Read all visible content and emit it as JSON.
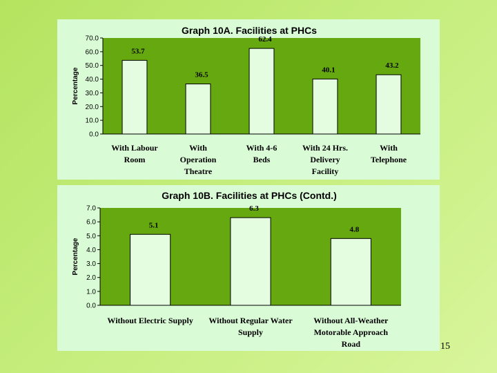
{
  "slide_number": "15",
  "chart_data": [
    {
      "type": "bar",
      "title": "Graph 10A. Facilities at PHCs",
      "ylabel": "Percentage",
      "xlabel": "",
      "ylim": [
        0,
        70
      ],
      "ytick_step": 10,
      "ytick_decimals": 1,
      "categories": [
        [
          "With Labour",
          "Room"
        ],
        [
          "With",
          "Operation",
          "Theatre"
        ],
        [
          "With 4-6",
          "Beds"
        ],
        [
          "With 24 Hrs.",
          "Delivery",
          "Facility"
        ],
        [
          "With",
          "Telephone"
        ]
      ],
      "values": [
        53.7,
        36.5,
        62.4,
        40.1,
        43.2
      ],
      "value_labels": [
        "53.7",
        "36.5",
        "62.4",
        "40.1",
        "43.2"
      ],
      "colors": {
        "plot_bg": "#66a80f",
        "bar_fill": "#e4fde0",
        "panel_bg": "#d9fcd6"
      }
    },
    {
      "type": "bar",
      "title": "Graph 10B. Facilities at PHCs (Contd.)",
      "ylabel": "Percentage",
      "xlabel": "",
      "ylim": [
        0,
        7
      ],
      "ytick_step": 1,
      "ytick_decimals": 1,
      "categories": [
        [
          "Without Electric Supply"
        ],
        [
          "Without Regular Water",
          "Supply"
        ],
        [
          "Without All-Weather",
          "Motorable Approach",
          "Road"
        ]
      ],
      "values": [
        5.1,
        6.3,
        4.8
      ],
      "value_labels": [
        "5.1",
        "6.3",
        "4.8"
      ],
      "colors": {
        "plot_bg": "#66a80f",
        "bar_fill": "#e4fde0",
        "panel_bg": "#d9fcd6"
      }
    }
  ]
}
